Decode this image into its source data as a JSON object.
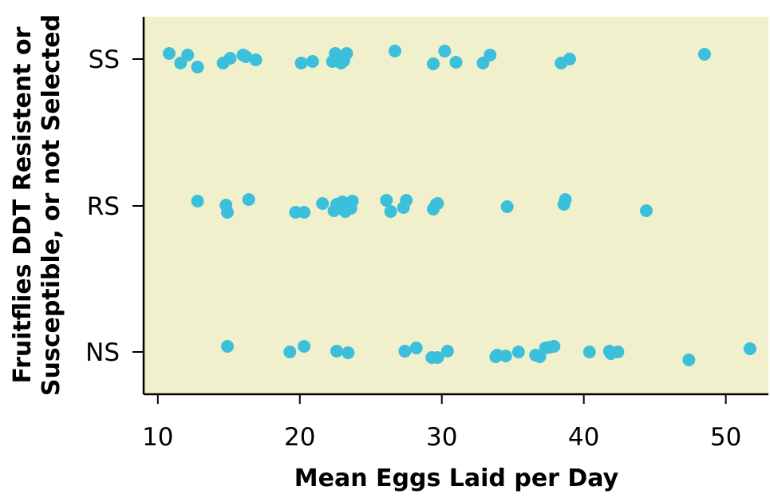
{
  "chart_data": {
    "type": "scatter",
    "title": "",
    "xlabel": "Mean Eggs Laid per Day",
    "ylabel_lines": [
      "Fruitflies DDT Resistent or",
      "Susceptible, or not Selected"
    ],
    "xlim": [
      9,
      53
    ],
    "x_ticks": [
      10,
      20,
      30,
      40,
      50
    ],
    "categories": [
      "SS",
      "RS",
      "NS"
    ],
    "background_color": "#f0f1cc",
    "marker_color": "#3cbfdb",
    "grid": false,
    "series": [
      {
        "category": "SS",
        "points": [
          [
            10.8,
            0.07
          ],
          [
            11.6,
            -0.05
          ],
          [
            12.1,
            0.05
          ],
          [
            12.8,
            -0.1
          ],
          [
            14.6,
            -0.05
          ],
          [
            15.1,
            0.01
          ],
          [
            16.0,
            0.05
          ],
          [
            16.2,
            0.03
          ],
          [
            16.9,
            -0.01
          ],
          [
            20.1,
            -0.05
          ],
          [
            20.9,
            -0.03
          ],
          [
            22.3,
            -0.03
          ],
          [
            22.5,
            0.07
          ],
          [
            22.9,
            -0.05
          ],
          [
            23.1,
            -0.02
          ],
          [
            23.3,
            0.07
          ],
          [
            26.7,
            0.1
          ],
          [
            29.4,
            -0.06
          ],
          [
            30.2,
            0.1
          ],
          [
            31.0,
            -0.04
          ],
          [
            32.9,
            -0.05
          ],
          [
            33.4,
            0.05
          ],
          [
            38.4,
            -0.05
          ],
          [
            39.0,
            0.0
          ],
          [
            48.5,
            0.06
          ]
        ]
      },
      {
        "category": "RS",
        "points": [
          [
            12.8,
            0.06
          ],
          [
            14.8,
            0.01
          ],
          [
            14.9,
            -0.08
          ],
          [
            16.4,
            0.08
          ],
          [
            19.7,
            -0.08
          ],
          [
            20.3,
            -0.08
          ],
          [
            21.6,
            0.03
          ],
          [
            22.4,
            -0.06
          ],
          [
            22.6,
            0.02
          ],
          [
            23.0,
            0.05
          ],
          [
            23.2,
            -0.07
          ],
          [
            23.6,
            -0.03
          ],
          [
            23.7,
            0.06
          ],
          [
            26.1,
            0.07
          ],
          [
            26.4,
            -0.07
          ],
          [
            27.3,
            -0.02
          ],
          [
            27.5,
            0.07
          ],
          [
            29.4,
            -0.04
          ],
          [
            29.6,
            0.02
          ],
          [
            29.7,
            0.03
          ],
          [
            34.6,
            -0.01
          ],
          [
            38.6,
            0.02
          ],
          [
            38.7,
            0.08
          ],
          [
            44.4,
            -0.06
          ]
        ]
      },
      {
        "category": "NS",
        "points": [
          [
            14.9,
            0.07
          ],
          [
            19.3,
            0.0
          ],
          [
            20.3,
            0.07
          ],
          [
            22.6,
            0.01
          ],
          [
            23.4,
            -0.01
          ],
          [
            27.4,
            0.01
          ],
          [
            28.2,
            0.05
          ],
          [
            29.3,
            -0.07
          ],
          [
            29.7,
            -0.07
          ],
          [
            30.4,
            0.01
          ],
          [
            33.8,
            -0.06
          ],
          [
            33.9,
            -0.04
          ],
          [
            34.5,
            -0.05
          ],
          [
            35.4,
            0.0
          ],
          [
            36.6,
            -0.04
          ],
          [
            36.9,
            -0.06
          ],
          [
            37.3,
            0.05
          ],
          [
            37.6,
            0.06
          ],
          [
            37.9,
            0.07
          ],
          [
            40.4,
            0.0
          ],
          [
            41.8,
            0.01
          ],
          [
            41.9,
            -0.02
          ],
          [
            42.4,
            0.0
          ],
          [
            47.4,
            -0.1
          ],
          [
            51.7,
            0.04
          ]
        ]
      }
    ]
  }
}
